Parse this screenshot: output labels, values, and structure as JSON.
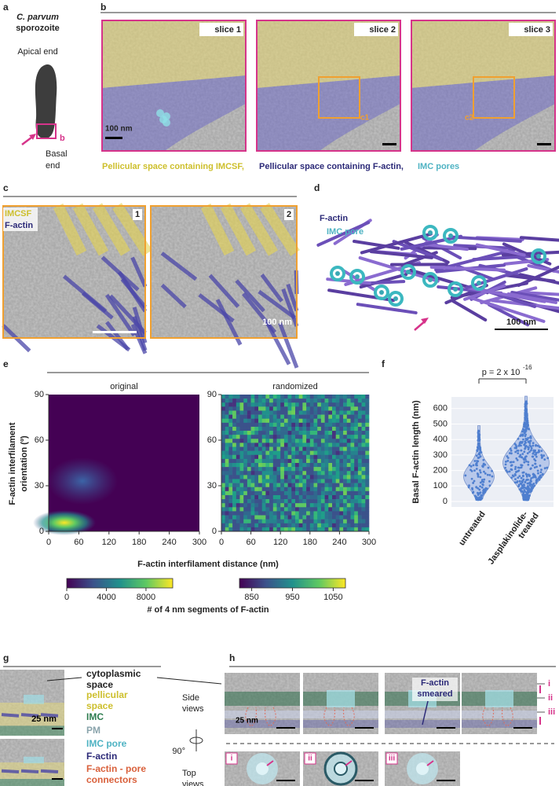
{
  "panel_labels": [
    "a",
    "b",
    "c",
    "d",
    "e",
    "f",
    "g",
    "h"
  ],
  "a": {
    "title_italic": "C. parvum",
    "title": "sporozoite",
    "apical": "Apical end",
    "box_label": "b",
    "basal": [
      "Basal",
      "end"
    ]
  },
  "b": {
    "slices": [
      "slice 1",
      "slice 2",
      "slice 3"
    ],
    "scale": "100 nm",
    "boxes": [
      "c1",
      "c2"
    ],
    "legend": [
      "Pellicular space containing IMCSF,",
      "Pellicular space containing F-actin,",
      "IMC pores"
    ]
  },
  "c": {
    "labels": [
      "IMCSF",
      "F-actin"
    ],
    "insets": [
      "1",
      "2"
    ],
    "scale": "100 nm"
  },
  "d": {
    "labels": [
      "F-actin",
      "IMC pore"
    ],
    "scale": "100 nm"
  },
  "e": {
    "titles": [
      "original",
      "randomized"
    ],
    "y_label": [
      "F-actin interfilament",
      "orientation (º)"
    ],
    "x_label": "F-actin interfilament distance (nm)",
    "xticks": [
      0,
      60,
      120,
      180,
      240,
      300
    ],
    "yticks": [
      0,
      30,
      60,
      90
    ],
    "cbar_ticks": [
      [
        0,
        4000,
        8000
      ],
      [
        850,
        950,
        1050
      ]
    ],
    "cbar_label": "# of 4 nm segments of F-actin"
  },
  "f": {
    "p": "p = 2 x 10",
    "p_exp": "-16",
    "y_label": "Basal F-actin length (nm)",
    "yticks": [
      0,
      100,
      200,
      300,
      400,
      500,
      600
    ],
    "categories": [
      "untreated",
      [
        "Jasplakinolide-",
        "treated"
      ]
    ]
  },
  "g": {
    "labels": [
      [
        "cytoplasmic",
        "space"
      ],
      [
        "pellicular",
        "space"
      ],
      [
        "IMC"
      ],
      [
        "PM"
      ],
      [
        "IMC pore"
      ],
      [
        "F-actin"
      ],
      [
        "F-actin - pore",
        "connectors"
      ]
    ],
    "scale": "25 nm"
  },
  "h": {
    "side": [
      "Side",
      "views"
    ],
    "top": [
      "Top",
      "views"
    ],
    "rotation": "90°",
    "smeared": [
      "F-actin",
      "smeared"
    ],
    "scale": "25 nm",
    "roman": [
      "i",
      "ii",
      "iii"
    ]
  }
}
